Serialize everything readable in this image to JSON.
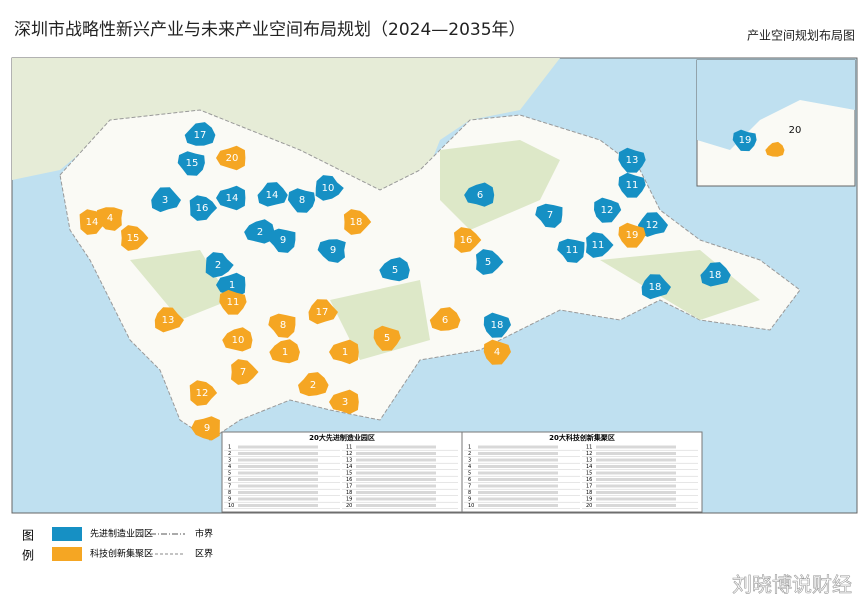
{
  "header": {
    "title": "深圳市战略性新兴产业与未来产业空间布局规划（2024—2035年）",
    "subtitle": "产业空间规划布局图"
  },
  "map": {
    "advanced_manufacturing_labels": [
      "17",
      "15",
      "3",
      "16",
      "14",
      "8",
      "10",
      "2",
      "9",
      "9",
      "5",
      "2",
      "1",
      "6",
      "7",
      "5",
      "13",
      "11",
      "12",
      "12",
      "11",
      "11",
      "18",
      "18",
      "18",
      "14"
    ],
    "innovation_cluster_labels": [
      "20",
      "14",
      "4",
      "15",
      "18",
      "16",
      "19",
      "13",
      "11",
      "8",
      "17",
      "10",
      "7",
      "12",
      "9",
      "2",
      "3",
      "1",
      "1",
      "5",
      "6",
      "4"
    ],
    "inset_labels": [
      "19",
      "20"
    ]
  },
  "tables": [
    {
      "title": "20大先进制造业园区",
      "numbers": [
        "1",
        "2",
        "3",
        "4",
        "5",
        "6",
        "7",
        "8",
        "9",
        "10",
        "11",
        "12",
        "13",
        "14",
        "15",
        "16",
        "17",
        "18",
        "19",
        "20"
      ]
    },
    {
      "title": "20大科技创新集聚区",
      "numbers": [
        "1",
        "2",
        "3",
        "4",
        "5",
        "6",
        "7",
        "8",
        "9",
        "10",
        "11",
        "12",
        "13",
        "14",
        "15",
        "16",
        "17",
        "18",
        "19",
        "20"
      ]
    }
  ],
  "legend": {
    "title_chars": [
      "图",
      "例"
    ],
    "items": [
      "先进制造业园区",
      "科技创新集聚区",
      "市界",
      "区界"
    ]
  },
  "watermark": "刘晓博说财经"
}
